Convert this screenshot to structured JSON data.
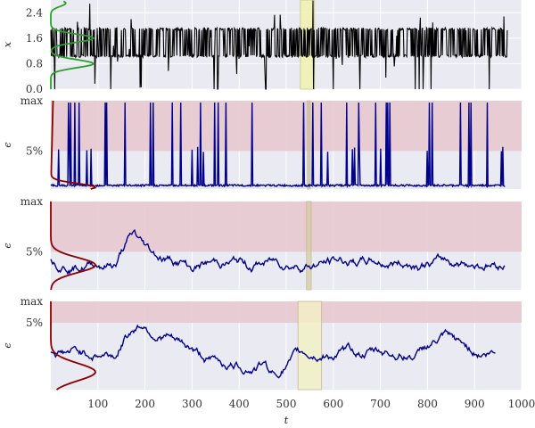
{
  "chart_data": [
    {
      "type": "line",
      "panel": "x-trace",
      "ylabel": "x",
      "xlim": [
        0,
        1000
      ],
      "ylim": [
        0,
        2.8
      ],
      "yticks": [
        "0.0",
        "0.8",
        "1.6",
        "2.4"
      ],
      "series": [
        {
          "color": "#000000",
          "values": [
            1.0,
            1.9,
            1.0,
            1.9,
            1.0,
            1.9,
            1.0,
            2.6,
            0.2,
            1.9,
            1.0,
            1.9
          ]
        }
      ],
      "density_color": "#2ca02c",
      "density_peaks_y": [
        0.8,
        1.6
      ],
      "highlight": {
        "x_start": 530,
        "x_end": 560,
        "color": "#f2f2b0"
      }
    },
    {
      "type": "line",
      "panel": "epsilon-1",
      "ylabel": "ϵ",
      "xlim": [
        0,
        1000
      ],
      "ytick_labels": [
        "max",
        "5%"
      ],
      "band": {
        "from": "5%",
        "to": "max",
        "color": "#e8c9cf"
      },
      "series": [
        {
          "color": "#00008b",
          "values": [
            0.0,
            0.0,
            0.0,
            0.4,
            0.0,
            1.0,
            0.0,
            0.0,
            0.4,
            0.0
          ]
        }
      ],
      "density_color": "#8b0000",
      "highlight": {
        "x_start": 545,
        "x_end": 551,
        "color": "#c8c8a0"
      }
    },
    {
      "type": "line",
      "panel": "epsilon-2",
      "ylabel": "ϵ",
      "xlim": [
        0,
        1000
      ],
      "ytick_labels": [
        "max",
        "5%"
      ],
      "band": {
        "from": "5%",
        "to": "max",
        "color": "#e8c9cf"
      },
      "series": [
        {
          "color": "#00008b",
          "values": [
            0.3,
            0.35,
            0.2,
            0.5,
            0.9,
            0.3,
            0.4,
            0.25,
            0.3,
            0.4,
            0.3,
            0.35
          ]
        }
      ],
      "density_color": "#8b0000",
      "highlight": {
        "x_start": 543,
        "x_end": 553,
        "color": "#d8cfa8"
      }
    },
    {
      "type": "line",
      "panel": "epsilon-3",
      "ylabel": "ϵ",
      "xlabel": "t",
      "xlim": [
        0,
        1000
      ],
      "xticks": [
        100,
        200,
        300,
        400,
        500,
        600,
        700,
        800,
        900,
        1000
      ],
      "ytick_labels": [
        "max",
        "5%"
      ],
      "band": {
        "from": "5%",
        "to": "max",
        "color": "#e8c9cf"
      },
      "series": [
        {
          "color": "#00008b",
          "values": [
            0.45,
            0.5,
            0.9,
            0.4,
            0.3,
            0.2,
            0.05,
            0.35,
            0.3,
            0.55,
            0.3,
            0.2
          ]
        }
      ],
      "density_color": "#8b0000",
      "highlight": {
        "x_start": 525,
        "x_end": 575,
        "color": "#f2f2c4"
      }
    }
  ]
}
